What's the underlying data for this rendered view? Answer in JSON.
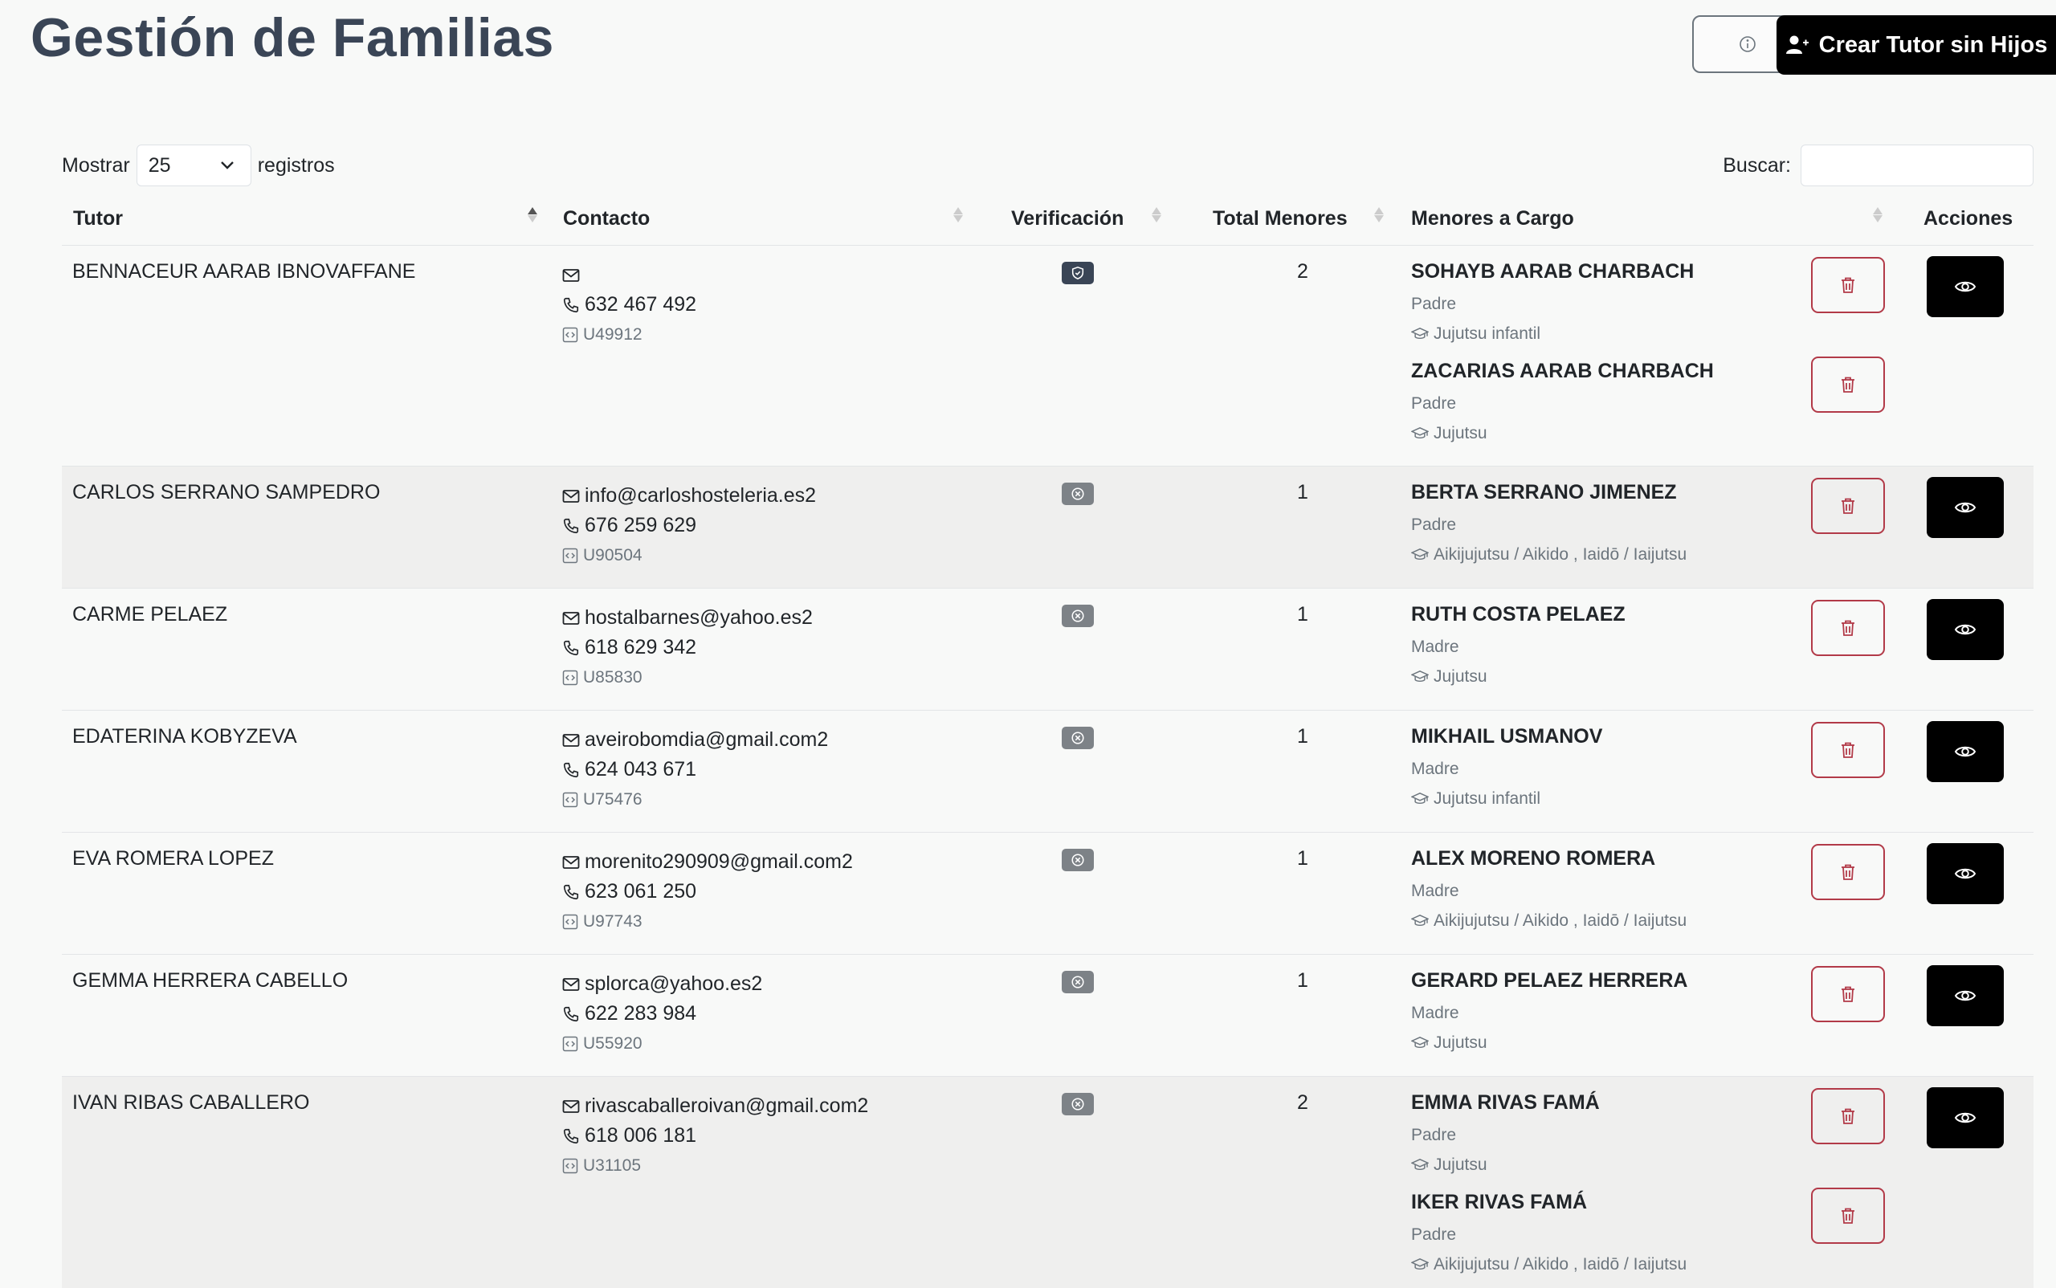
{
  "header": {
    "title": "Gestión de Familias",
    "create_button_label": "Crear Tutor sin Hijos"
  },
  "controls": {
    "show_label": "Mostrar",
    "page_length": "25",
    "records_label": "registros",
    "search_label": "Buscar:",
    "search_value": ""
  },
  "table": {
    "columns": [
      "Tutor",
      "Contacto",
      "Verificación",
      "Total Menores",
      "Menores a Cargo",
      "Acciones"
    ],
    "rows": [
      {
        "tutor": "BENNACEUR AARAB IBNOVAFFANE",
        "email": "",
        "phone": "632 467 492",
        "code": "U49912",
        "verified": true,
        "total": "2",
        "minors": [
          {
            "name": "SOHAYB AARAB CHARBACH",
            "relation": "Padre",
            "class": "Jujutsu infantil"
          },
          {
            "name": "ZACARIAS AARAB CHARBACH",
            "relation": "Padre",
            "class": "Jujutsu"
          }
        ]
      },
      {
        "tutor": "CARLOS SERRANO SAMPEDRO",
        "email": "info@carloshosteleria.es2",
        "phone": "676 259 629",
        "code": "U90504",
        "verified": false,
        "total": "1",
        "minors": [
          {
            "name": "BERTA SERRANO JIMENEZ",
            "relation": "Padre",
            "class": "Aikijujutsu / Aikido , Iaidō / Iaijutsu"
          }
        ]
      },
      {
        "tutor": "CARME PELAEZ",
        "email": "hostalbarnes@yahoo.es2",
        "phone": "618 629 342",
        "code": "U85830",
        "verified": false,
        "total": "1",
        "minors": [
          {
            "name": "RUTH COSTA PELAEZ",
            "relation": "Madre",
            "class": "Jujutsu"
          }
        ]
      },
      {
        "tutor": "EDATERINA KOBYZEVA",
        "email": "aveirobomdia@gmail.com2",
        "phone": "624 043 671",
        "code": "U75476",
        "verified": false,
        "total": "1",
        "minors": [
          {
            "name": "MIKHAIL USMANOV",
            "relation": "Madre",
            "class": "Jujutsu infantil"
          }
        ]
      },
      {
        "tutor": "EVA ROMERA LOPEZ",
        "email": "morenito290909@gmail.com2",
        "phone": "623 061 250",
        "code": "U97743",
        "verified": false,
        "total": "1",
        "minors": [
          {
            "name": "ALEX MORENO ROMERA",
            "relation": "Madre",
            "class": "Aikijujutsu / Aikido , Iaidō / Iaijutsu"
          }
        ]
      },
      {
        "tutor": "GEMMA HERRERA CABELLO",
        "email": "splorca@yahoo.es2",
        "phone": "622 283 984",
        "code": "U55920",
        "verified": false,
        "total": "1",
        "minors": [
          {
            "name": "GERARD PELAEZ HERRERA",
            "relation": "Madre",
            "class": "Jujutsu"
          }
        ]
      },
      {
        "tutor": "IVAN RIBAS CABALLERO",
        "email": "rivascaballeroivan@gmail.com2",
        "phone": "618 006 181",
        "code": "U31105",
        "verified": false,
        "total": "2",
        "minors": [
          {
            "name": "EMMA RIVAS FAMÁ",
            "relation": "Padre",
            "class": "Jujutsu"
          },
          {
            "name": "IKER RIVAS FAMÁ",
            "relation": "Padre",
            "class": "Aikijujutsu / Aikido , Iaidō / Iaijutsu"
          }
        ]
      }
    ]
  },
  "icons": {
    "info": "info-circle-icon",
    "create": "user-plus-icon",
    "email": "envelope-icon",
    "phone": "phone-icon",
    "code": "code-icon",
    "verified": "shield-check-icon",
    "unverified": "x-circle-icon",
    "class": "graduation-cap-icon",
    "delete": "trash-icon",
    "view": "eye-icon"
  },
  "colors": {
    "primary_dark": "#000000",
    "title": "#3a4556",
    "danger": "#b23a48",
    "muted": "#6c757d",
    "verified_badge": "#3a4556",
    "unverified_badge": "#7d8287"
  }
}
